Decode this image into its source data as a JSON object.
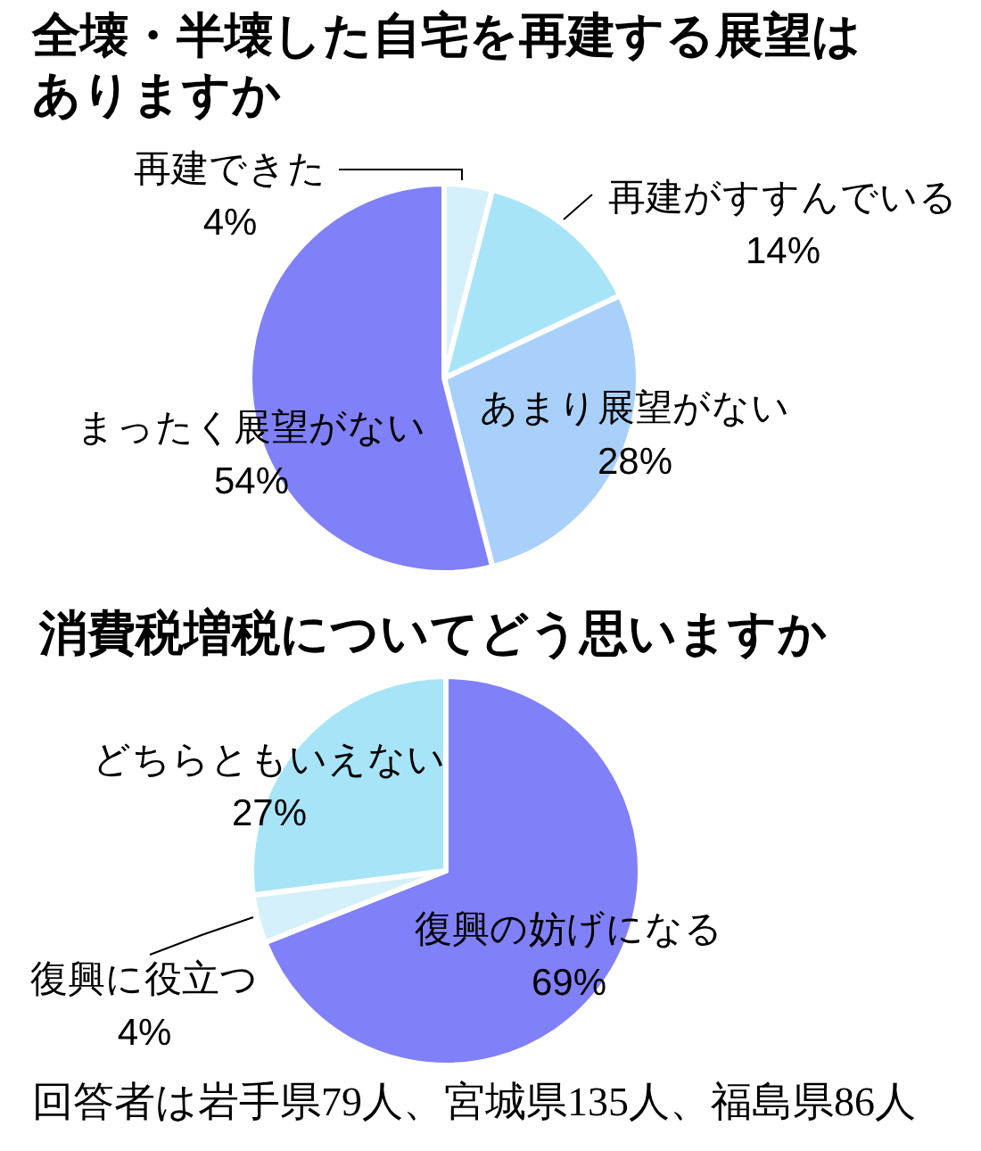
{
  "chart_data": [
    {
      "type": "pie",
      "title": "全壊・半壊した自宅を再建する展望はありますか",
      "categories": [
        "再建できた",
        "再建がすすんでいる",
        "あまり展望がない",
        "まったく展望がない"
      ],
      "values": [
        4,
        14,
        28,
        54
      ],
      "value_labels": [
        "4%",
        "14%",
        "28%",
        "54%"
      ],
      "colors": [
        "#d4f0fa",
        "#a8e4f8",
        "#a8d0fa",
        "#8080f8"
      ]
    },
    {
      "type": "pie",
      "title": "消費税増税についてどう思いますか",
      "categories": [
        "復興の妨げになる",
        "復興に役立つ",
        "どちらともいえない"
      ],
      "values": [
        69,
        4,
        27
      ],
      "value_labels": [
        "69%",
        "4%",
        "27%"
      ],
      "colors": [
        "#8080f8",
        "#d4f0fa",
        "#a8e4f8"
      ],
      "annotations": [
        "回答者は岩手県79人、宮城県135人、福島県86人"
      ]
    }
  ]
}
